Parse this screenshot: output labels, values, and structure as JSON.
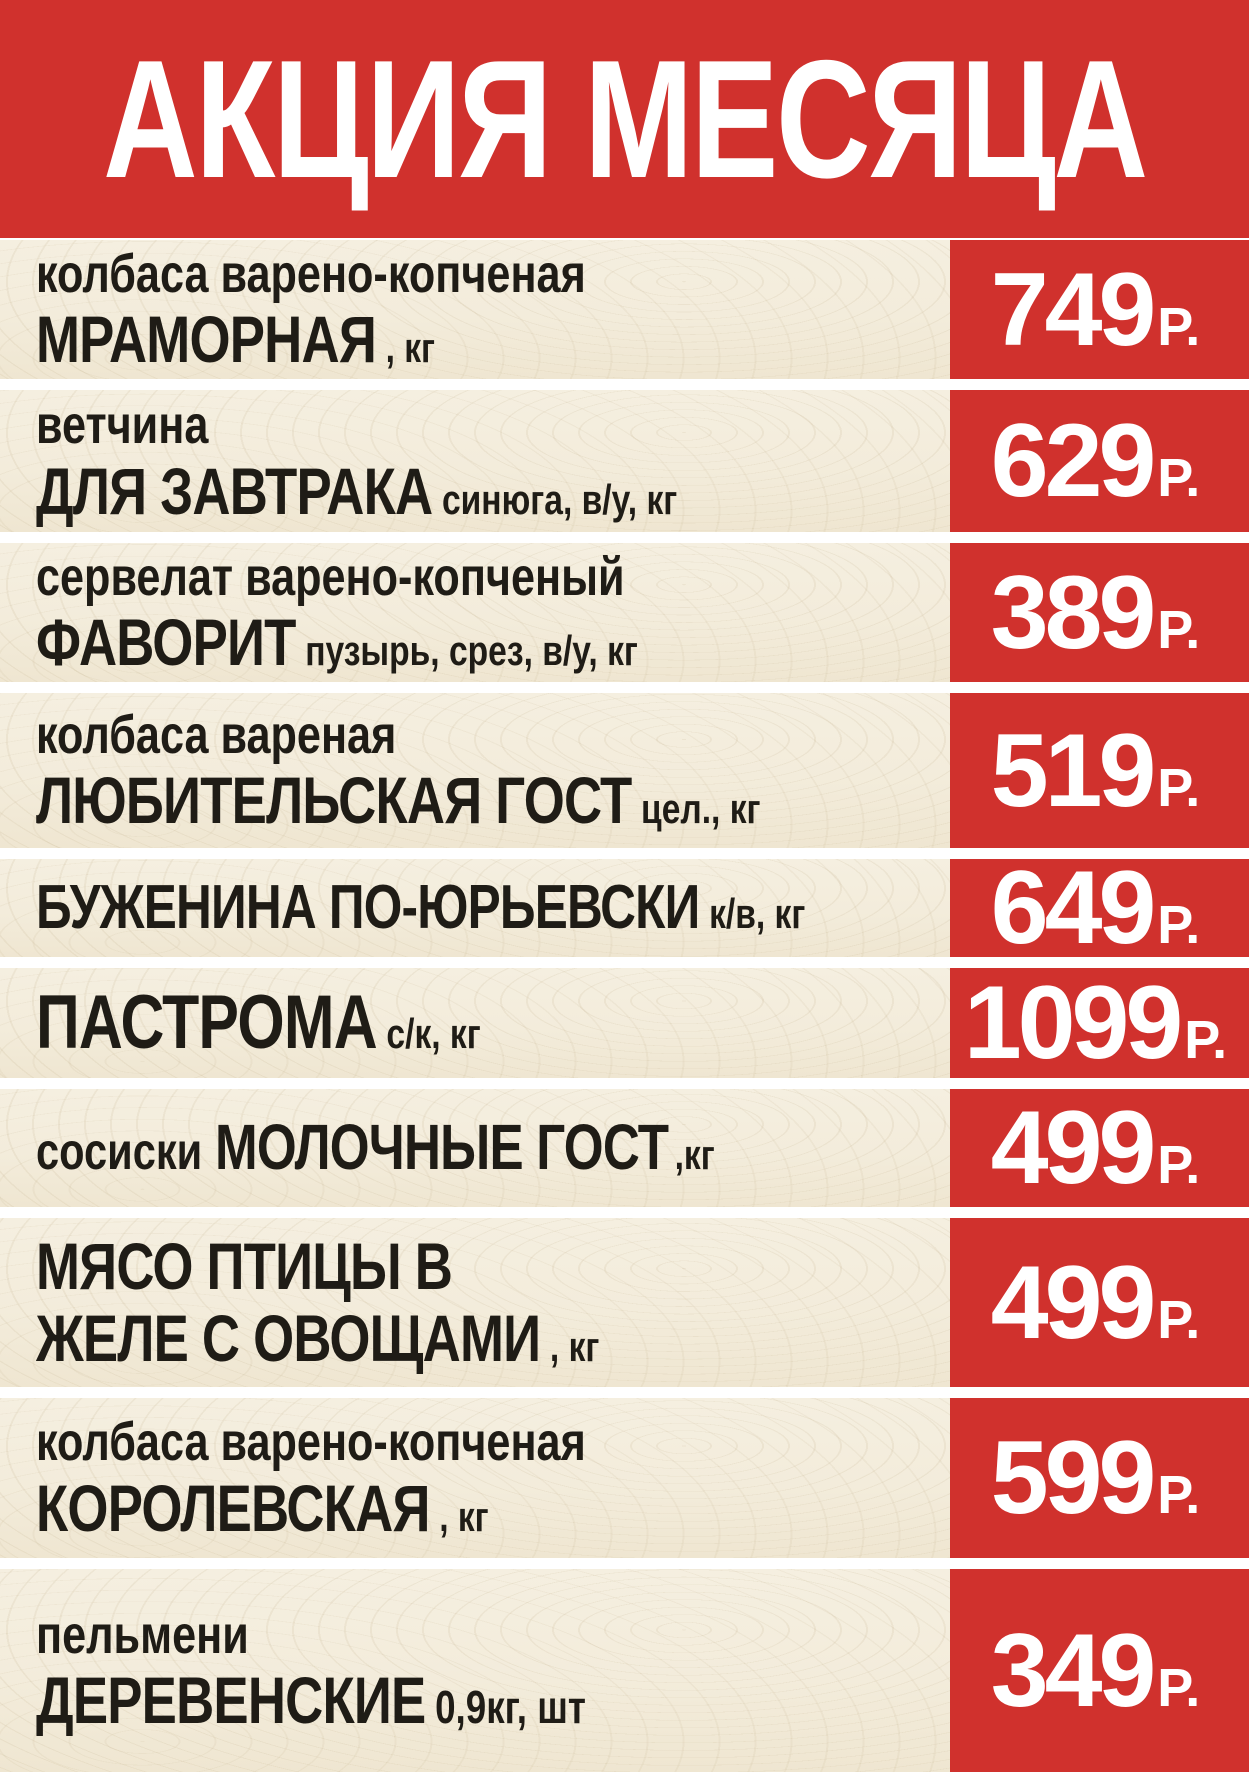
{
  "title": "АКЦИЯ МЕСЯЦА",
  "colors": {
    "red": "#d0312d",
    "wood": "#f3ecdb",
    "text": "#1f1c16",
    "price_text": "#ffffff"
  },
  "rows": [
    {
      "desc": "колбаса варено-копченая",
      "prefix": "",
      "name": "МРАМОРНАЯ",
      "name2": "",
      "unit": ", кг",
      "unit2": "",
      "price": "749",
      "cur": "Р."
    },
    {
      "desc": "ветчина",
      "prefix": "",
      "name": "ДЛЯ ЗАВТРАКА",
      "name2": "",
      "unit": "синюга, в/у, кг",
      "unit2": "",
      "price": "629",
      "cur": "Р."
    },
    {
      "desc": "сервелат варено-копченый",
      "prefix": "",
      "name": "ФАВОРИТ",
      "name2": "",
      "unit": "пузырь, срез, в/у, кг",
      "unit2": "",
      "price": "389",
      "cur": "Р."
    },
    {
      "desc": "колбаса вареная",
      "prefix": "",
      "name": "ЛЮБИТЕЛЬСКАЯ ГОСТ",
      "name2": "",
      "unit": "цел., кг",
      "unit2": "",
      "price": "519",
      "cur": "Р."
    },
    {
      "desc": "",
      "prefix": "",
      "name": "БУЖЕНИНА ПО-ЮРЬЕВСКИ",
      "name2": "",
      "unit": "к/в, кг",
      "unit2": "",
      "price": "649",
      "cur": "Р."
    },
    {
      "desc": "",
      "prefix": "",
      "name": "ПАСТРОМА",
      "name2": "",
      "unit": "с/к, кг",
      "unit2": "",
      "price": "1099",
      "cur": "Р."
    },
    {
      "desc": "",
      "prefix": "сосиски",
      "name": "МОЛОЧНЫЕ ГОСТ",
      "name2": "",
      "unit": ",кг",
      "unit2": "",
      "price": "499",
      "cur": "Р."
    },
    {
      "desc": "",
      "prefix": "",
      "name": "МЯСО ПТИЦЫ В",
      "name2": "ЖЕЛЕ С ОВОЩАМИ",
      "unit": "",
      "unit2": ", кг",
      "price": "499",
      "cur": "Р."
    },
    {
      "desc": "колбаса варено-копченая",
      "prefix": "",
      "name": "КОРОЛЕВСКАЯ",
      "name2": "",
      "unit": ", кг",
      "unit2": "",
      "price": "599",
      "cur": "Р."
    },
    {
      "desc": "пельмени",
      "prefix": "",
      "name": "ДЕРЕВЕНСКИЕ",
      "name2": "",
      "unit": "0,9кг, шт",
      "unit2": "",
      "price": "349",
      "cur": "Р."
    }
  ]
}
